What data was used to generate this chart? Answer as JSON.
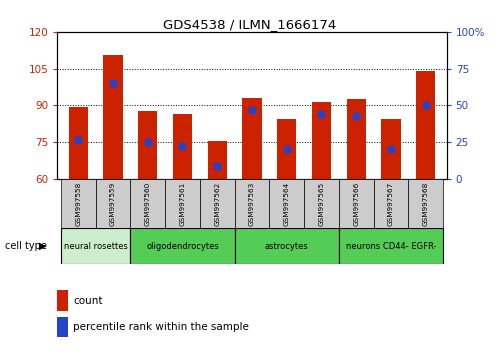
{
  "title": "GDS4538 / ILMN_1666174",
  "samples": [
    "GSM997558",
    "GSM997559",
    "GSM997560",
    "GSM997561",
    "GSM997562",
    "GSM997563",
    "GSM997564",
    "GSM997565",
    "GSM997566",
    "GSM997567",
    "GSM997568"
  ],
  "counts": [
    89.5,
    110.5,
    87.5,
    86.5,
    75.5,
    93.0,
    84.5,
    91.5,
    92.5,
    84.5,
    104.0
  ],
  "percentile_vals": [
    26.5,
    65.0,
    25.0,
    22.5,
    8.5,
    46.5,
    20.0,
    44.0,
    43.0,
    20.0,
    50.0
  ],
  "ylim_left": [
    60,
    120
  ],
  "ylim_right": [
    0,
    100
  ],
  "yticks_left": [
    60,
    75,
    90,
    105,
    120
  ],
  "yticks_right": [
    0,
    25,
    50,
    75,
    100
  ],
  "ytick_labels_right": [
    "0",
    "25",
    "50",
    "75",
    "100%"
  ],
  "bar_color": "#cc2200",
  "percentile_color": "#2244cc",
  "bg_color": "#ffffff",
  "cell_type_groups": [
    {
      "label": "neural rosettes",
      "start": 0,
      "end": 2,
      "color": "#cceecc"
    },
    {
      "label": "oligodendrocytes",
      "start": 2,
      "end": 5,
      "color": "#55cc55"
    },
    {
      "label": "astrocytes",
      "start": 5,
      "end": 8,
      "color": "#55cc55"
    },
    {
      "label": "neurons CD44- EGFR-",
      "start": 8,
      "end": 11,
      "color": "#55cc55"
    }
  ],
  "left_color": "#cc2200",
  "right_color": "#2244cc",
  "bar_width": 0.55,
  "cell_type_label": "cell type"
}
